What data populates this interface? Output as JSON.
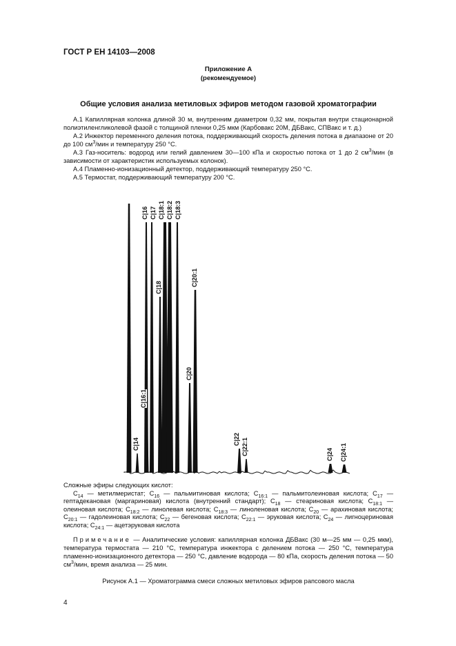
{
  "header": {
    "standard": "ГОСТ Р ЕН 14103—2008"
  },
  "appendix": {
    "label": "Приложение А",
    "status": "(рекомендуемое)",
    "title": "Общие условия анализа метиловых эфиров методом газовой хроматографии"
  },
  "items": [
    {
      "text": "А.1  Капиллярная колонка длиной 30 м, внутренним диаметром 0,32 мм, покрытая внутри стационарной полиэтиленгликолевой фазой с толщиной пленки 0,25 мкм (Карбовакс 20М, ДБВакс, СПВакс и т. д.)"
    },
    {
      "pre": "А.2  Инжектор переменного деления потока, поддерживающий скорость деления потока в диапазоне от 20 до 100 см",
      "sup": "3",
      "post": "/мин и температуру 250 °С."
    },
    {
      "pre": "А.3  Газ-носитель: водород или гелий давлением 30—100 кПа и скоростью потока от 1 до 2 см",
      "sup": "3",
      "post": "/мин (в зависимости от характеристик используемых колонок)."
    },
    {
      "text": "А.4  Пламенно-ионизационный детектор, поддерживающий температуру 250 °С."
    },
    {
      "text": "А.5  Термостат, поддерживающий температуру 200 °С."
    }
  ],
  "chromatogram": {
    "peaks": [
      "C|16",
      "C|17",
      "C|18:1",
      "C|18:2",
      "C|18:3",
      "C|18",
      "C|20:1",
      "C|20",
      "C|16:1",
      "C|14",
      "C|22",
      "C|22:1",
      "C|24",
      "C|24:1"
    ]
  },
  "legend": {
    "intro": "Сложные эфиры следующих кислот:",
    "entries": [
      [
        "14",
        "метилмеристат"
      ],
      [
        "16",
        "пальмитиновая кислота"
      ],
      [
        "16:1",
        "пальмитолеиновая кислота"
      ],
      [
        "17",
        "гептадекановая (маргариновая) кислота (внутренний стандарт)"
      ],
      [
        "18",
        "стеариновая кислота"
      ],
      [
        "18:1",
        "олеиновая кислота"
      ],
      [
        "18:2",
        "линолевая кислота"
      ],
      [
        "18:3",
        "линоленовая кислота"
      ],
      [
        "20",
        "арахиновая кислота"
      ],
      [
        "20:1",
        "гадолеиновая кислота"
      ],
      [
        "22",
        "бегеновая кислота"
      ],
      [
        "22:1",
        "эруковая кислота"
      ],
      [
        "24",
        "лигноцериновая кислота"
      ],
      [
        "24:1",
        "ацетэруковая кислота"
      ]
    ]
  },
  "note": {
    "label": "Примечание",
    "pre": " — Аналитические условия: капиллярная колонка ДБВакс (30 м—25 мм — 0,25 мкм), температура термостата — 210 °С, температура инжектора с делением потока — 250 °С, температура пламенно-ионизационного детектора — 250 °С, давление водорода — 80 кПа, скорость деления потока — 50 см",
    "sup": "3",
    "post": "/мин, время анализа — 25 мин."
  },
  "caption": "Рисунок А.1 — Хроматограмма смеси сложных метиловых эфиров рапсового масла",
  "page_number": "4"
}
